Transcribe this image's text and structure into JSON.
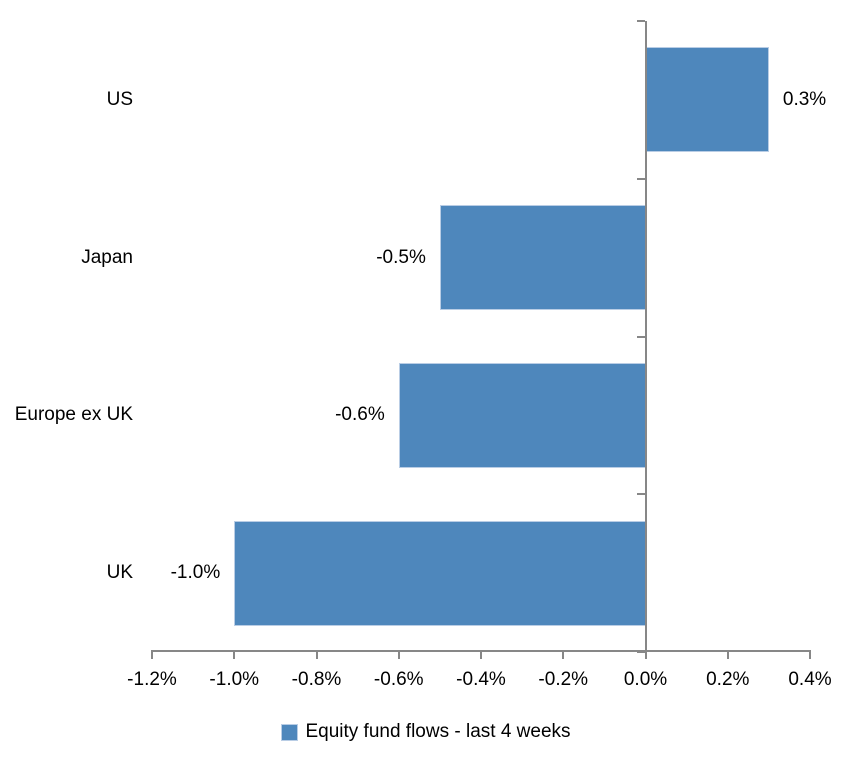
{
  "chart_data": {
    "type": "bar",
    "orientation": "horizontal",
    "title": "",
    "categories": [
      "US",
      "Japan",
      "Europe ex UK",
      "UK"
    ],
    "values": [
      0.3,
      -0.5,
      -0.6,
      -1.0
    ],
    "data_labels": [
      "0.3%",
      "-0.5%",
      "-0.6%",
      "-1.0%"
    ],
    "series_name": "Equity fund flows - last 4 weeks",
    "xlim": [
      -1.2,
      0.4
    ],
    "x_tick_step": 0.2,
    "x_tick_labels": [
      "-1.2%",
      "-1.0%",
      "-0.8%",
      "-0.6%",
      "-0.4%",
      "-0.2%",
      "0.0%",
      "0.2%",
      "0.4%"
    ],
    "grid": false,
    "legend_position": "bottom",
    "colors": {
      "bar_fill": "#4e87bc",
      "bar_border": "#b9cde5",
      "axis": "#878787",
      "text": "#000000",
      "background": "#ffffff"
    }
  }
}
